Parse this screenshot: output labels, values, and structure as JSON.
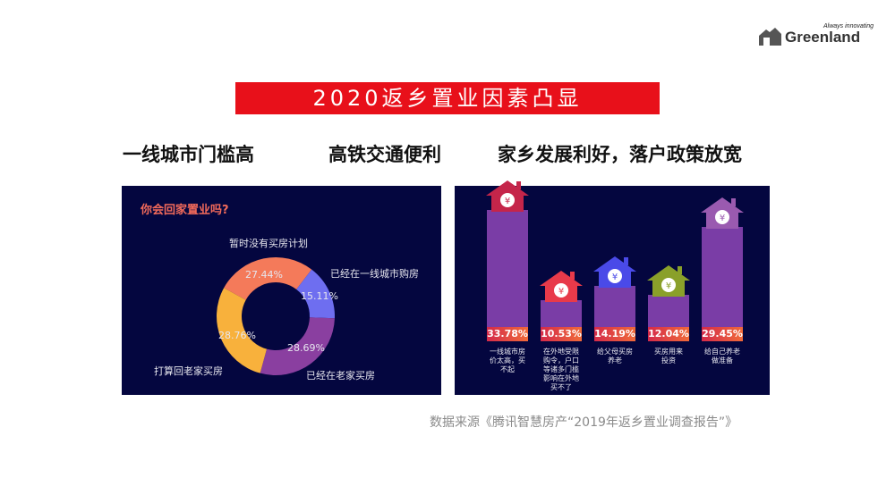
{
  "logo": {
    "name": "Greenland",
    "tagline": "Always innovating"
  },
  "title": "2020返乡置业因素凸显",
  "headings": [
    "一线城市门槛高",
    "高铁交通便利",
    "家乡发展利好，落户政策放宽"
  ],
  "source": "数据来源《腾讯智慧房产“2019年返乡置业调查报告”》",
  "chart_data": [
    {
      "type": "pie",
      "title": "你会回家置业吗?",
      "donut": true,
      "series": [
        {
          "name": "暂时没有买房计划",
          "value": 27.44,
          "label": "27.44%",
          "color": "#f47a5a"
        },
        {
          "name": "已经在一线城市购房",
          "value": 15.11,
          "label": "15.11%",
          "color": "#6e6ef0"
        },
        {
          "name": "已经在老家买房",
          "value": 28.69,
          "label": "28.69%",
          "color": "#8a3fa0"
        },
        {
          "name": "打算回老家买房",
          "value": 28.76,
          "label": "28.76%",
          "color": "#f8b13c"
        }
      ]
    },
    {
      "type": "bar",
      "categories": [
        "一线城市房价太高，买不起",
        "在外地受限购令，户口等诸多门槛影响在外地买不了",
        "给父母买房养老",
        "买房用来投资",
        "给自己养老做准备"
      ],
      "category_lines": [
        [
          "一线城市房",
          "价太高，买",
          "不起"
        ],
        [
          "在外地受限",
          "购令，户口",
          "等诸多门槛",
          "影响在外地",
          "买不了"
        ],
        [
          "给父母买房",
          "养老"
        ],
        [
          "买房用来",
          "投资"
        ],
        [
          "给自己养老",
          "做准备"
        ]
      ],
      "values": [
        33.78,
        10.53,
        14.19,
        12.04,
        29.45
      ],
      "labels": [
        "33.78%",
        "10.53%",
        "14.19%",
        "12.04%",
        "29.45%"
      ],
      "house_colors": [
        "#c5254a",
        "#e83a4a",
        "#4a4ae8",
        "#8aa02a",
        "#9a5ab0"
      ],
      "ylim": [
        0,
        35
      ]
    }
  ]
}
